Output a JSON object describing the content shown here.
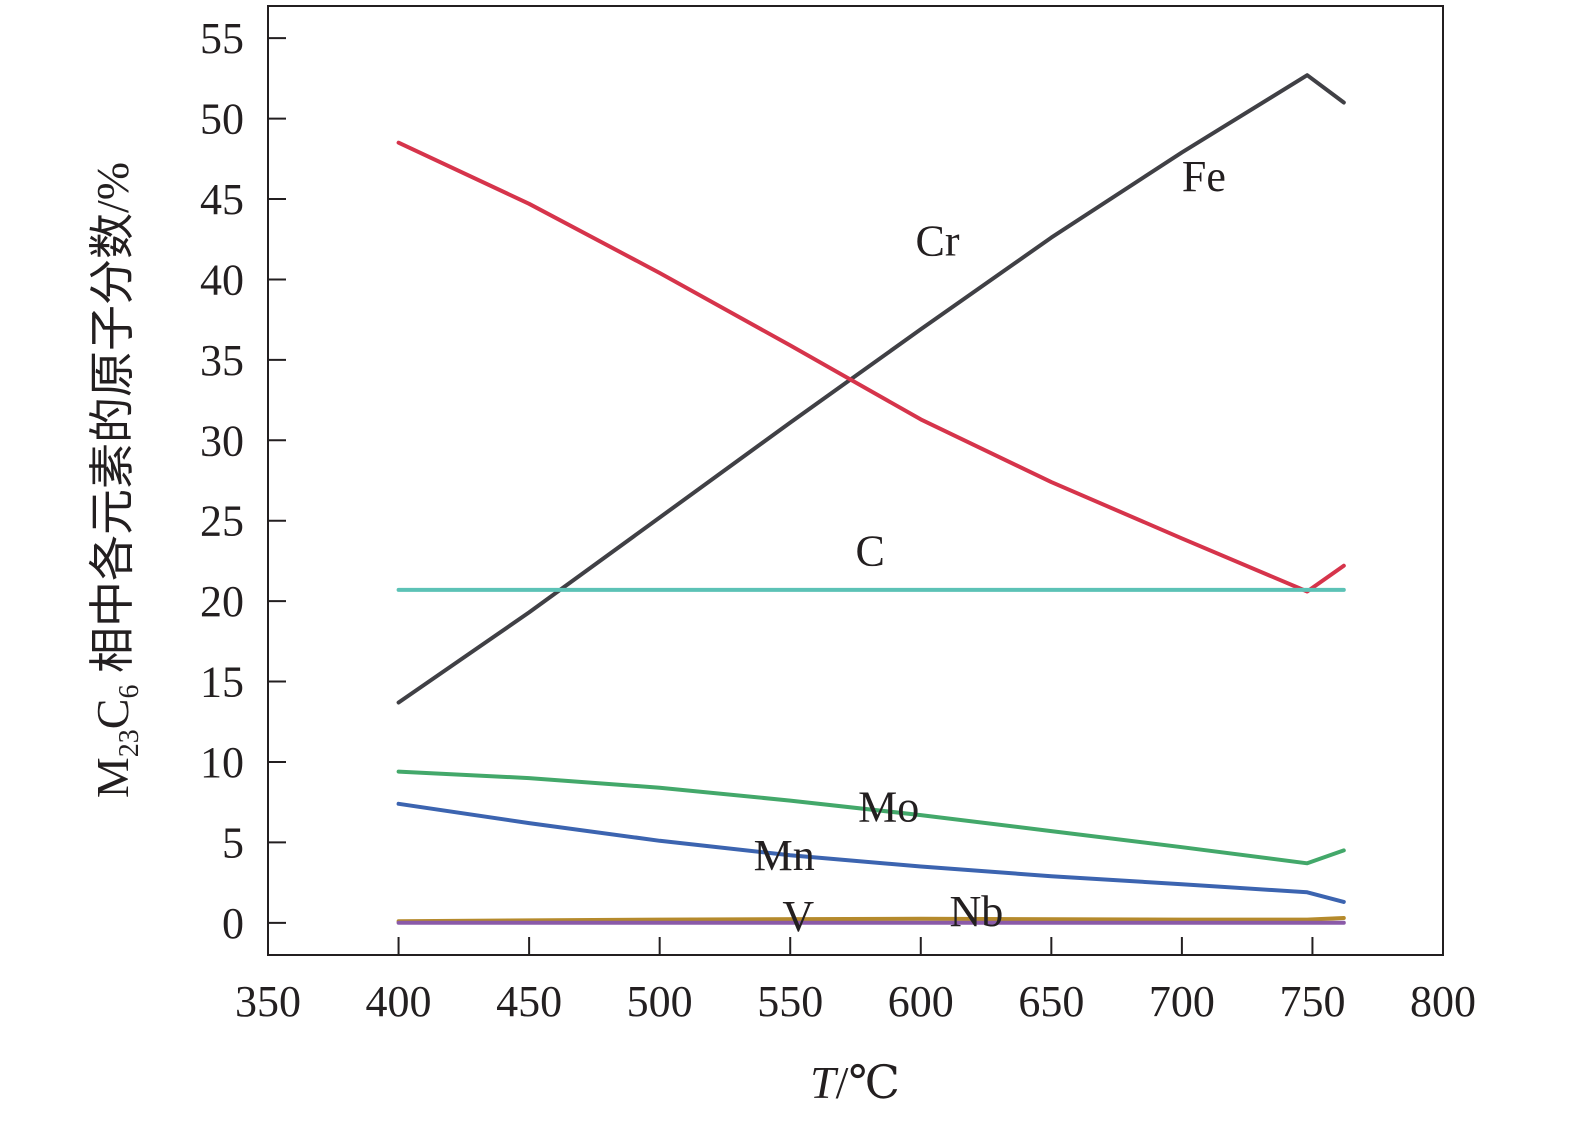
{
  "chart_data": {
    "type": "line",
    "title": "",
    "xlabel": {
      "var": "T",
      "unit": "/℃"
    },
    "ylabel": {
      "sym1": "M",
      "sub1": "23",
      "sym2": "C",
      "sub2": "6",
      "text": " 相中各元素的原子分数/%"
    },
    "xlim": [
      350,
      800
    ],
    "ylim": [
      -2,
      57
    ],
    "xticks": [
      350,
      400,
      450,
      500,
      550,
      600,
      650,
      700,
      750,
      800
    ],
    "yticks": [
      0,
      5,
      10,
      15,
      20,
      25,
      30,
      35,
      40,
      45,
      50,
      55
    ],
    "grid": false,
    "series": [
      {
        "name": "Fe",
        "color": "#404045",
        "label_at": [
          700,
          45.5
        ],
        "x": [
          400,
          450,
          500,
          550,
          600,
          650,
          700,
          748,
          762
        ],
        "y": [
          13.7,
          19.3,
          25.2,
          31.1,
          36.9,
          42.6,
          47.9,
          52.7,
          51.0
        ]
      },
      {
        "name": "Cr",
        "color": "#d6344b",
        "label_at": [
          598,
          41.5
        ],
        "x": [
          400,
          450,
          500,
          550,
          600,
          650,
          700,
          748,
          762
        ],
        "y": [
          48.5,
          44.7,
          40.4,
          35.9,
          31.3,
          27.4,
          23.9,
          20.6,
          22.2
        ]
      },
      {
        "name": "C",
        "color": "#5cc2b6",
        "label_at": [
          575,
          22.2
        ],
        "x": [
          400,
          762
        ],
        "y": [
          20.7,
          20.7
        ]
      },
      {
        "name": "Mo",
        "color": "#43a86a",
        "label_at": [
          576,
          6.3
        ],
        "x": [
          400,
          450,
          500,
          550,
          600,
          650,
          700,
          748,
          762
        ],
        "y": [
          9.4,
          9.0,
          8.4,
          7.6,
          6.7,
          5.7,
          4.7,
          3.7,
          4.5
        ]
      },
      {
        "name": "Mn",
        "color": "#3c64b0",
        "label_at": [
          536,
          3.3
        ],
        "x": [
          400,
          450,
          500,
          550,
          600,
          650,
          700,
          748,
          762
        ],
        "y": [
          7.4,
          6.2,
          5.1,
          4.2,
          3.5,
          2.9,
          2.4,
          1.9,
          1.3
        ]
      },
      {
        "name": "V",
        "color": "#b58a2c",
        "label_at": [
          547,
          -0.5
        ],
        "x": [
          400,
          500,
          600,
          700,
          748,
          762
        ],
        "y": [
          0.1,
          0.2,
          0.25,
          0.2,
          0.2,
          0.3
        ]
      },
      {
        "name": "Nb",
        "color": "#8a5aa8",
        "label_at": [
          611,
          -0.2
        ],
        "x": [
          400,
          762
        ],
        "y": [
          0.0,
          0.0
        ]
      }
    ]
  }
}
